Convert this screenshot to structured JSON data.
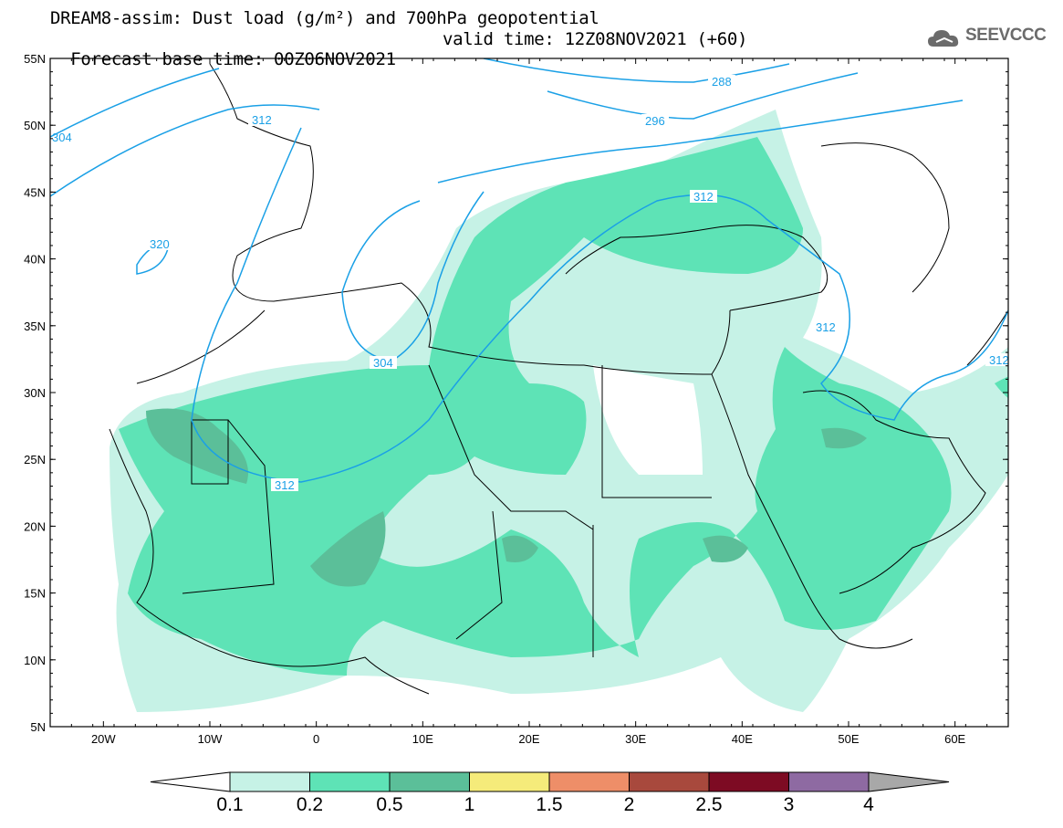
{
  "title": {
    "line1": "DREAM8-assim: Dust load (g/m²) and 700hPa geopotential",
    "line2_base": "Forecast base time: 00Z06NOV2021",
    "line2_valid": "valid time: 12Z08NOV2021 (+60)"
  },
  "logo": {
    "text": "SEEVCCC",
    "icon": "cloud-icon"
  },
  "map": {
    "lat_labels": [
      "55N",
      "50N",
      "45N",
      "40N",
      "35N",
      "30N",
      "25N",
      "20N",
      "15N",
      "10N",
      "5N"
    ],
    "lon_labels": [
      "20W",
      "10W",
      "0",
      "10E",
      "20E",
      "30E",
      "40E",
      "50E",
      "60E"
    ],
    "contour_labels": [
      "288",
      "296",
      "312",
      "320",
      "304",
      "312",
      "312",
      "312",
      "304",
      "312"
    ]
  },
  "colorbar": {
    "labels": [
      "0.1",
      "0.2",
      "0.5",
      "1",
      "1.5",
      "2",
      "2.5",
      "3",
      "4"
    ],
    "colors": [
      "#c6f2e6",
      "#5ee3b6",
      "#5bbf99",
      "#f5eb7a",
      "#ee8e68",
      "#a8493d",
      "#7d0b23",
      "#8e6aa2"
    ],
    "under_color": "#ffffff",
    "over_color": "#a8a8a8"
  },
  "colors": {
    "contour": "#1aa0e6",
    "coast": "#000000"
  }
}
